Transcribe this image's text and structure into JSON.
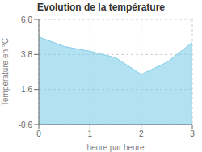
{
  "chart_data": {
    "type": "area",
    "title": "Evolution de la température",
    "xlabel": "heure par heure",
    "ylabel": "Température en °C",
    "x": [
      0,
      0.5,
      1,
      1.5,
      2,
      2.5,
      3
    ],
    "values": [
      4.9,
      4.3,
      4.0,
      3.6,
      2.55,
      3.3,
      4.55
    ],
    "xlim": [
      0,
      3
    ],
    "ylim": [
      -0.6,
      6.0
    ],
    "xticks": [
      0,
      1,
      2,
      3
    ],
    "yticks": [
      -0.6,
      1.6,
      3.8,
      {
        "value": 6.0,
        "label": "6.0"
      }
    ],
    "color": "#7ECDE8",
    "grid": true
  }
}
